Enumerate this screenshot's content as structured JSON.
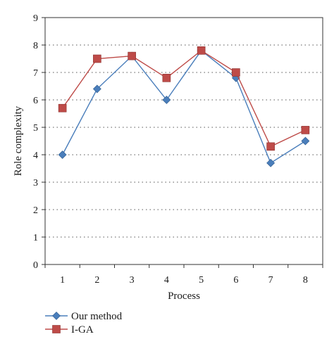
{
  "chart_data": {
    "type": "line",
    "title": "",
    "xlabel": "Process",
    "ylabel": "Role complexity",
    "categories": [
      "1",
      "2",
      "3",
      "4",
      "5",
      "6",
      "7",
      "8"
    ],
    "yticks": [
      "0",
      "1",
      "2",
      "3",
      "4",
      "5",
      "6",
      "7",
      "8",
      "9"
    ],
    "ylim": [
      0,
      9
    ],
    "grid": "horizontal dotted",
    "legend_position": "bottom-left",
    "series": [
      {
        "name": "Our method",
        "marker": "diamond",
        "color": "#4a7ebb",
        "values": [
          4.0,
          6.4,
          7.6,
          6.0,
          7.8,
          6.8,
          3.7,
          4.5
        ]
      },
      {
        "name": "I-GA",
        "marker": "square",
        "color": "#be4b48",
        "values": [
          5.7,
          7.5,
          7.6,
          6.8,
          7.8,
          7.0,
          4.3,
          4.9
        ]
      }
    ]
  }
}
